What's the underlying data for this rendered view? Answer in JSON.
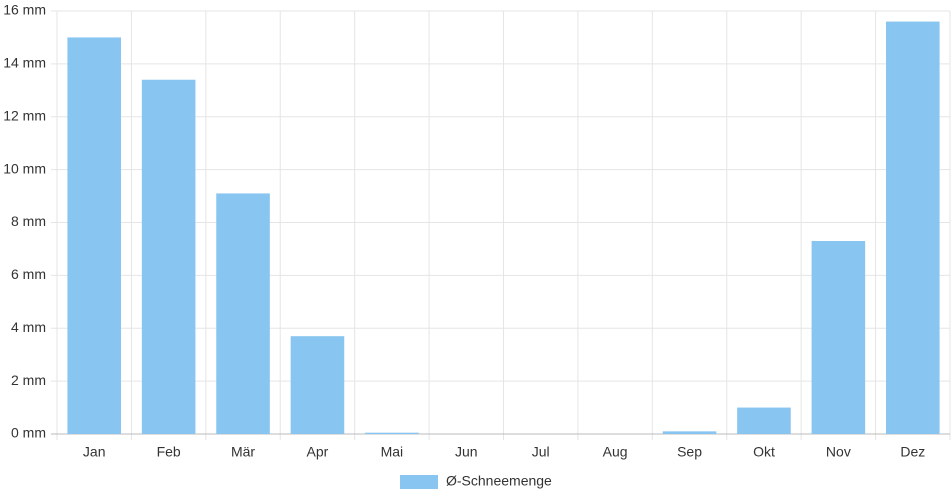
{
  "chart_data": {
    "type": "bar",
    "categories": [
      "Jan",
      "Feb",
      "Mär",
      "Apr",
      "Mai",
      "Jun",
      "Jul",
      "Aug",
      "Sep",
      "Okt",
      "Nov",
      "Dez"
    ],
    "series": [
      {
        "name": "Ø-Schneemenge",
        "color": "#88c5f0",
        "values": [
          15.0,
          13.4,
          9.1,
          3.7,
          0.05,
          0,
          0,
          0,
          0.1,
          1.0,
          7.3,
          15.6
        ]
      }
    ],
    "ylim": [
      0,
      16
    ],
    "yticks": [
      {
        "value": 0,
        "label": "0 mm"
      },
      {
        "value": 2,
        "label": "2 mm"
      },
      {
        "value": 4,
        "label": "4 mm"
      },
      {
        "value": 6,
        "label": "6 mm"
      },
      {
        "value": 8,
        "label": "8 mm"
      },
      {
        "value": 10,
        "label": "10 mm"
      },
      {
        "value": 12,
        "label": "12 mm"
      },
      {
        "value": 14,
        "label": "14 mm"
      },
      {
        "value": 16,
        "label": "16 mm"
      }
    ],
    "grid": true,
    "legend": "bottom"
  }
}
